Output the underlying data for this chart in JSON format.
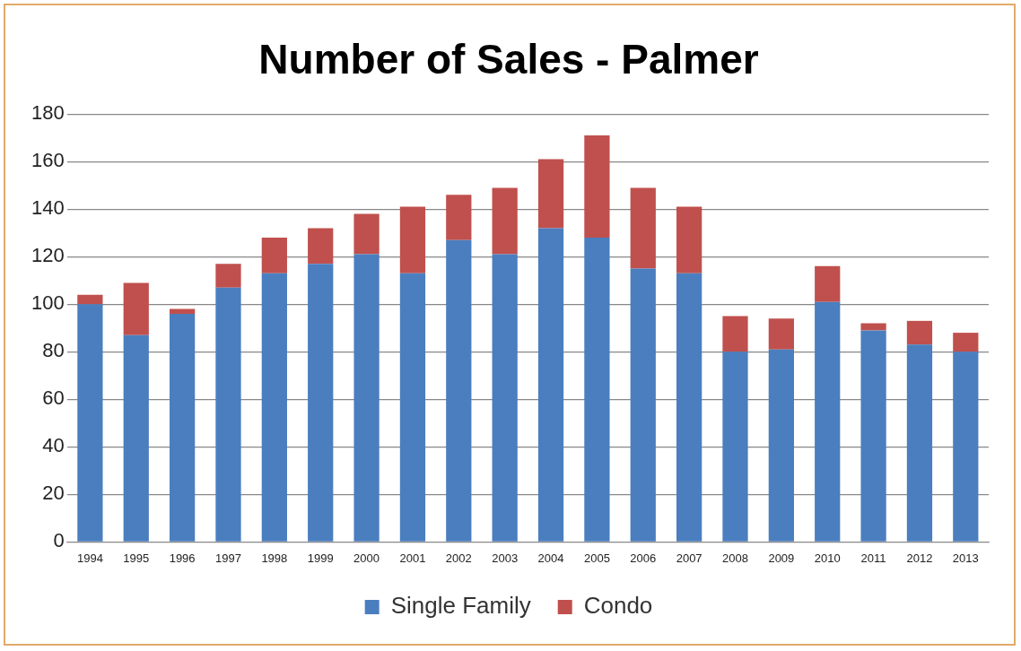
{
  "chart_data": {
    "type": "bar",
    "title": "Number of Sales - Palmer",
    "stacked": true,
    "grid": "y",
    "legend": "bottom",
    "categories": [
      "1994",
      "1995",
      "1996",
      "1997",
      "1998",
      "1999",
      "2000",
      "2001",
      "2002",
      "2003",
      "2004",
      "2005",
      "2006",
      "2007",
      "2008",
      "2009",
      "2010",
      "2011",
      "2012",
      "2013"
    ],
    "series": [
      {
        "name": "Single Family",
        "color": "#4a7ebf",
        "values": [
          100,
          87,
          96,
          107,
          113,
          117,
          121,
          113,
          127,
          121,
          132,
          128,
          115,
          113,
          80,
          81,
          101,
          89,
          83,
          80
        ]
      },
      {
        "name": "Condo",
        "color": "#c0504d",
        "values": [
          4,
          22,
          2,
          10,
          15,
          15,
          17,
          28,
          19,
          28,
          29,
          43,
          34,
          28,
          15,
          13,
          15,
          3,
          10,
          8
        ]
      }
    ],
    "ylim": [
      0,
      180
    ],
    "yticks": [
      0,
      20,
      40,
      60,
      80,
      100,
      120,
      140,
      160,
      180
    ]
  }
}
